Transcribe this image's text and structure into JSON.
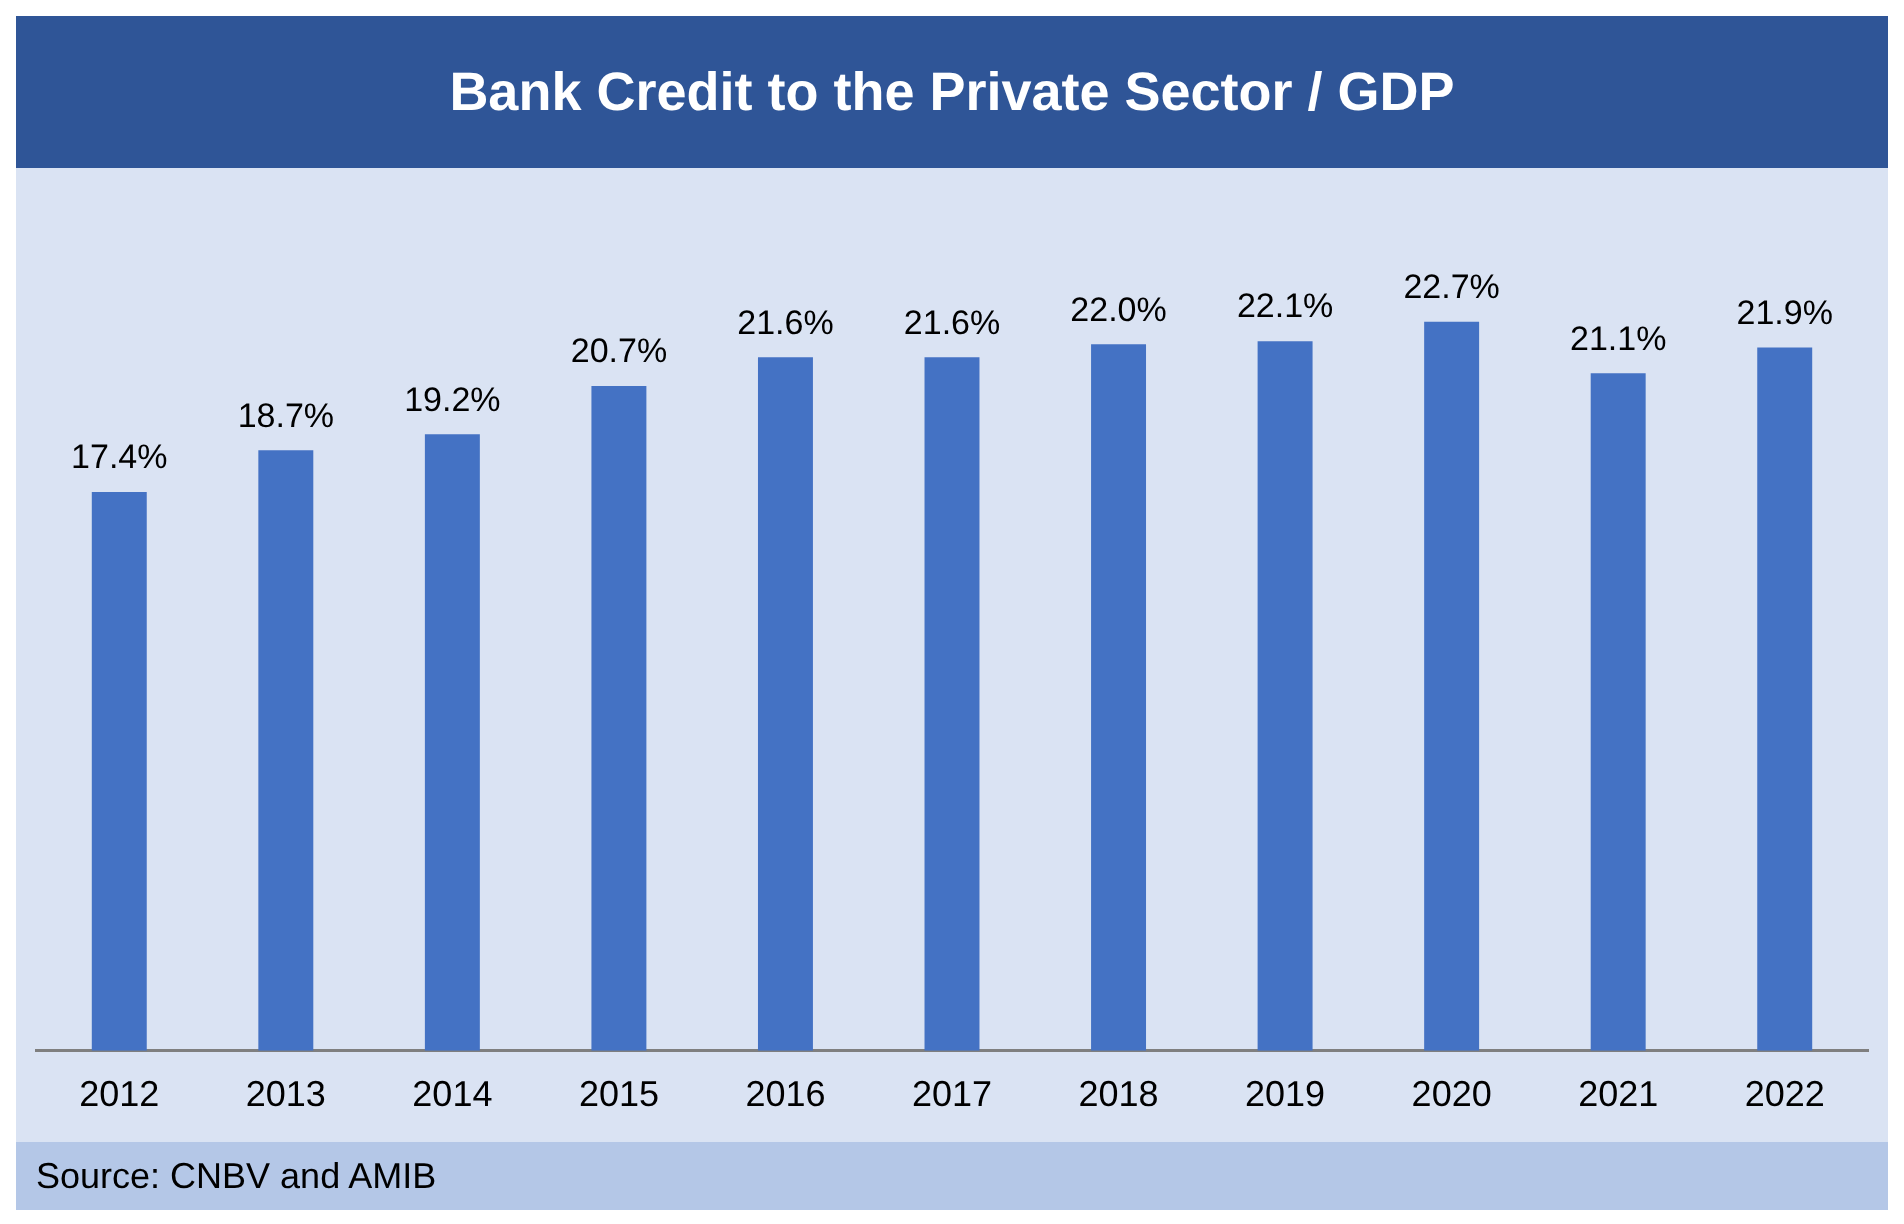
{
  "chart_data": {
    "type": "bar",
    "title": "Bank Credit to the Private Sector / GDP",
    "categories": [
      "2012",
      "2013",
      "2014",
      "2015",
      "2016",
      "2017",
      "2018",
      "2019",
      "2020",
      "2021",
      "2022"
    ],
    "values": [
      17.4,
      18.7,
      19.2,
      20.7,
      21.6,
      21.6,
      22.0,
      22.1,
      22.7,
      21.1,
      21.9
    ],
    "value_labels": [
      "17.4%",
      "18.7%",
      "19.2%",
      "20.7%",
      "21.6%",
      "21.6%",
      "22.0%",
      "22.1%",
      "22.7%",
      "21.1%",
      "21.9%"
    ],
    "color": "#4472c4",
    "tick_labels": "x",
    "grid": false,
    "legend": false,
    "annotations": [
      "Source: CNBV and AMIB"
    ]
  }
}
